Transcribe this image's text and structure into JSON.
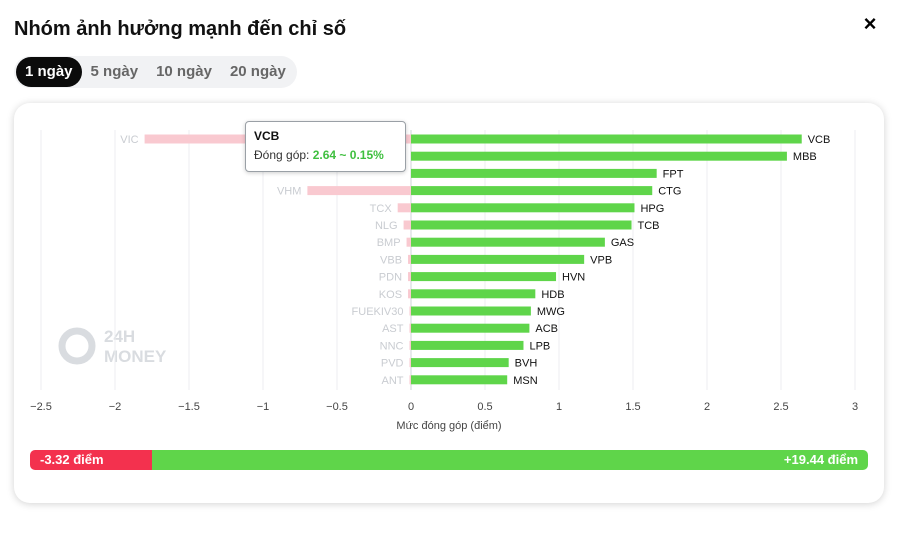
{
  "header": {
    "title": "Nhóm ảnh hưởng mạnh đến chỉ số",
    "close_icon": "×"
  },
  "tabs": [
    {
      "label": "1 ngày",
      "active": true
    },
    {
      "label": "5 ngày",
      "active": false
    },
    {
      "label": "10 ngày",
      "active": false
    },
    {
      "label": "20 ngày",
      "active": false
    }
  ],
  "tooltip": {
    "name": "VCB",
    "label": "Đóng góp:",
    "value": "2.64 ~ 0.15%"
  },
  "summary": {
    "negative_label": "-3.32 điểm",
    "positive_label": "+19.44 điểm",
    "negative": -3.32,
    "positive": 19.44
  },
  "colors": {
    "positive": "#5fd54a",
    "negative": "#f3314e",
    "negative_faded": "#f9c9d0"
  },
  "watermark": {
    "line1": "24H",
    "line2": "MONEY"
  },
  "chart_data": {
    "type": "bar",
    "orientation": "horizontal",
    "xlabel": "Mức đóng góp (điểm)",
    "xlim": [
      -2.5,
      3
    ],
    "xticks": [
      -2.5,
      -2,
      -1.5,
      -1,
      -0.5,
      0,
      0.5,
      1,
      1.5,
      2,
      2.5,
      3
    ],
    "xtick_labels": [
      "−2.5",
      "−2",
      "−1.5",
      "−1",
      "−0.5",
      "0",
      "0.5",
      "1",
      "1.5",
      "2",
      "2.5",
      "3"
    ],
    "grid": true,
    "positive": {
      "categories": [
        "VCB",
        "MBB",
        "FPT",
        "CTG",
        "HPG",
        "TCB",
        "GAS",
        "VPB",
        "HVN",
        "HDB",
        "MWG",
        "ACB",
        "LPB",
        "BVH",
        "MSN"
      ],
      "values": [
        2.64,
        2.54,
        1.66,
        1.63,
        1.51,
        1.49,
        1.31,
        1.17,
        0.98,
        0.84,
        0.81,
        0.8,
        0.76,
        0.66,
        0.65
      ]
    },
    "negative": {
      "categories": [
        "VIC",
        "VHM",
        "TCX",
        "NLG",
        "BMP",
        "VBB",
        "PDN",
        "KOS",
        "FUEKIV30",
        "AST",
        "NNC",
        "PVD",
        "ANT"
      ],
      "values": [
        -1.8,
        -0.7,
        -0.09,
        -0.05,
        -0.03,
        -0.02,
        -0.02,
        -0.02,
        -0.01,
        -0.01,
        -0.01,
        -0.01,
        -0.01
      ]
    }
  }
}
